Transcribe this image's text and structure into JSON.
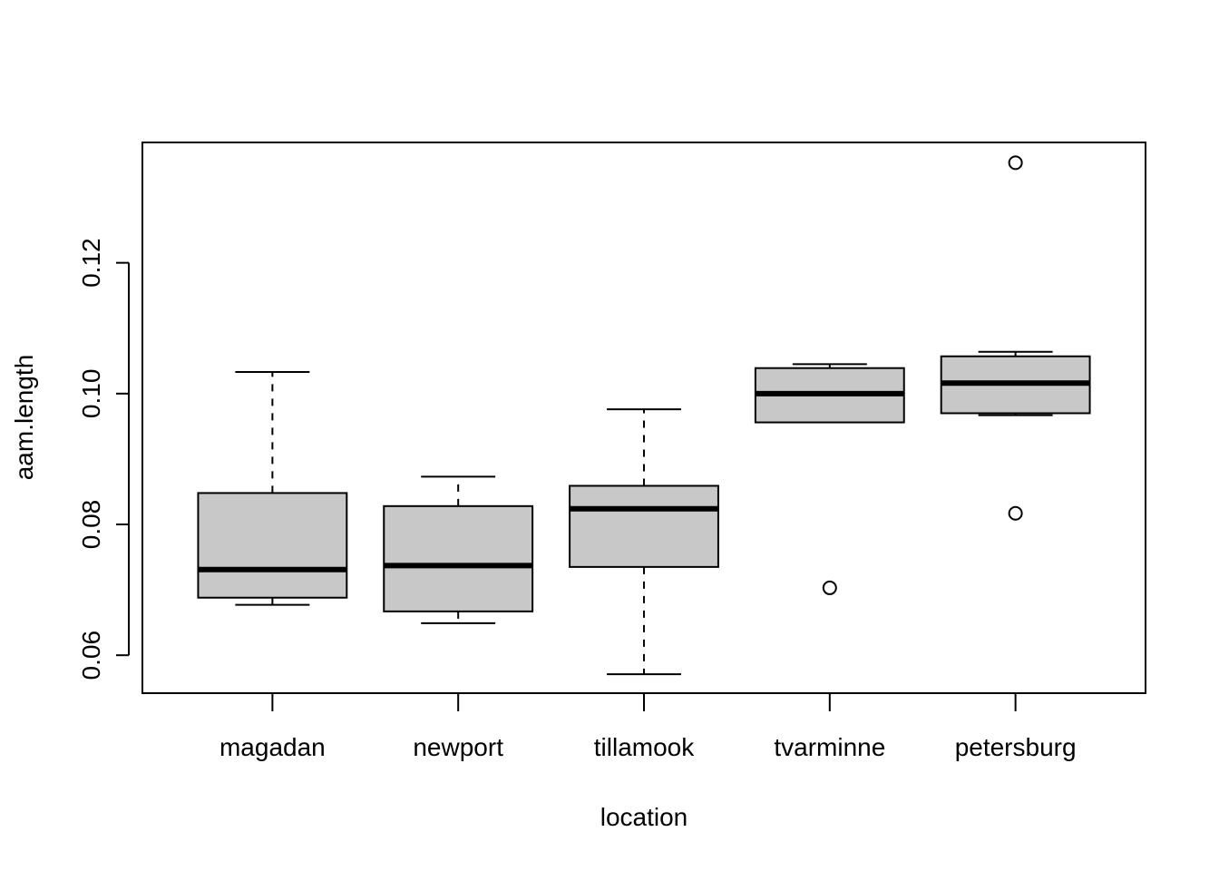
{
  "chart_data": {
    "type": "boxplot",
    "title": "",
    "xlabel": "location",
    "ylabel": "aam.length",
    "ylim": [
      0.0542,
      0.1384
    ],
    "yticks": [
      0.06,
      0.08,
      0.1,
      0.12
    ],
    "ytick_labels": [
      "0.06",
      "0.08",
      "0.10",
      "0.12"
    ],
    "grid": false,
    "categories": [
      "magadan",
      "newport",
      "tillamook",
      "tvarminne",
      "petersburg"
    ],
    "boxes": [
      {
        "name": "magadan",
        "whisker_low": 0.0677,
        "q1": 0.0688,
        "median": 0.0731,
        "q3": 0.0848,
        "whisker_high": 0.1033,
        "outliers": []
      },
      {
        "name": "newport",
        "whisker_low": 0.0649,
        "q1": 0.0667,
        "median": 0.0737,
        "q3": 0.0828,
        "whisker_high": 0.0873,
        "outliers": []
      },
      {
        "name": "tillamook",
        "whisker_low": 0.0571,
        "q1": 0.0735,
        "median": 0.0824,
        "q3": 0.0859,
        "whisker_high": 0.0976,
        "outliers": []
      },
      {
        "name": "tvarminne",
        "whisker_low": 0.0956,
        "q1": 0.0956,
        "median": 0.1,
        "q3": 0.1039,
        "whisker_high": 0.1045,
        "outliers": [
          0.0703
        ]
      },
      {
        "name": "petersburg",
        "whisker_low": 0.0967,
        "q1": 0.097,
        "median": 0.1016,
        "q3": 0.1057,
        "whisker_high": 0.1064,
        "outliers": [
          0.0817,
          0.1353
        ]
      }
    ],
    "colors": {
      "box_fill": "#c8c8c8",
      "stroke": "#000000",
      "background": "#ffffff"
    }
  }
}
